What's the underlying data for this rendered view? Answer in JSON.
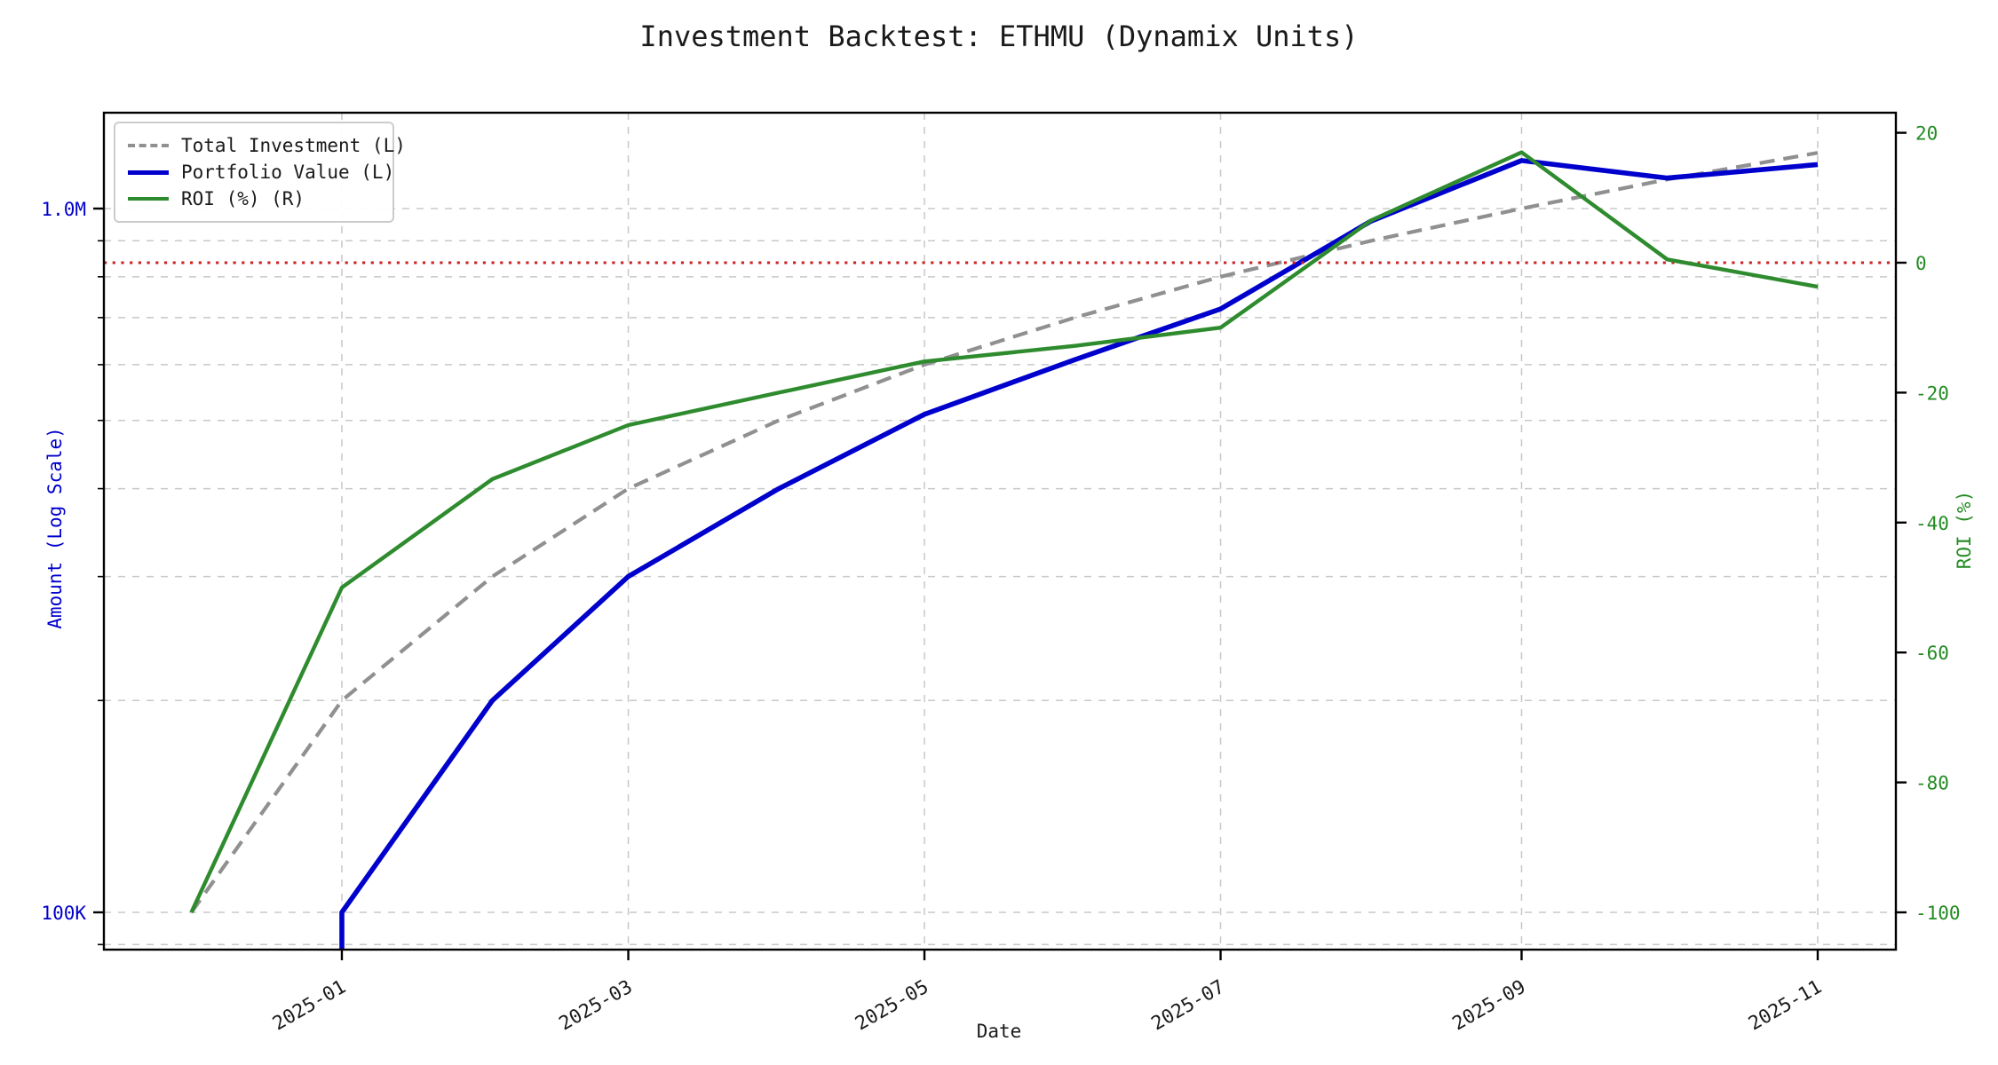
{
  "chart_data": {
    "type": "line",
    "title": "Investment Backtest: ETHMU (Dynamix Units)",
    "xlabel": "Date",
    "ylabel_left": "Amount (Log Scale)",
    "ylabel_right": "ROI (%)",
    "x_dates": [
      "2024-12",
      "2025-01",
      "2025-02",
      "2025-03",
      "2025-04",
      "2025-05",
      "2025-06",
      "2025-07",
      "2025-08",
      "2025-09",
      "2025-10",
      "2025-11"
    ],
    "x_day_offsets": [
      0,
      31,
      62,
      90,
      121,
      151,
      182,
      212,
      243,
      274,
      304,
      335
    ],
    "x_tick_labels": [
      "2025-01",
      "2025-03",
      "2025-05",
      "2025-07",
      "2025-09",
      "2025-11"
    ],
    "x_tick_day_offsets": [
      31,
      90,
      151,
      212,
      274,
      335
    ],
    "series": [
      {
        "name": "Total Investment (L)",
        "axis": "left",
        "style": "dashed",
        "color": "#909090",
        "width": 4.2,
        "values": [
          100000,
          200000,
          300000,
          400000,
          500000,
          600000,
          700000,
          800000,
          900000,
          1000000,
          1100000,
          1200000
        ]
      },
      {
        "name": "Portfolio Value (L)",
        "axis": "left",
        "style": "solid",
        "color": "#0000cd",
        "width": 5.6,
        "values": [
          0,
          100000,
          200000,
          300000,
          400000,
          510000,
          610000,
          720000,
          960000,
          1170000,
          1105000,
          1155000
        ]
      },
      {
        "name": "ROI (%) (R)",
        "axis": "right",
        "style": "solid",
        "color": "#2e8b2e",
        "width": 4.4,
        "values": [
          -100,
          -50,
          -33.3,
          -25,
          -20,
          -15.2,
          -12.8,
          -10,
          6.5,
          17,
          0.5,
          -3.7
        ]
      }
    ],
    "left_axis": {
      "scale": "log",
      "major_ticks": [
        {
          "label": "1.0M",
          "value": 1000000
        },
        {
          "label": "100K",
          "value": 100000
        }
      ],
      "minor_tick_values": [
        90000,
        200000,
        300000,
        400000,
        500000,
        600000,
        700000,
        800000,
        900000
      ],
      "range": [
        88500,
        1370000
      ],
      "text_color": "#0000cd"
    },
    "right_axis": {
      "tick_values": [
        20,
        0,
        -20,
        -40,
        -60,
        -80,
        -100
      ],
      "range": [
        -105.7,
        23.1
      ],
      "text_color": "#228b22"
    },
    "zero_line": {
      "value": 0,
      "color": "#cc2222",
      "style": "dotted"
    },
    "grid": {
      "color": "#c8c8c8",
      "on": true
    },
    "legend": {
      "position": "upper-left",
      "items": [
        {
          "label": "Total Investment (L)"
        },
        {
          "label": "Portfolio Value (L)"
        },
        {
          "label": "ROI (%) (R)"
        }
      ]
    }
  }
}
